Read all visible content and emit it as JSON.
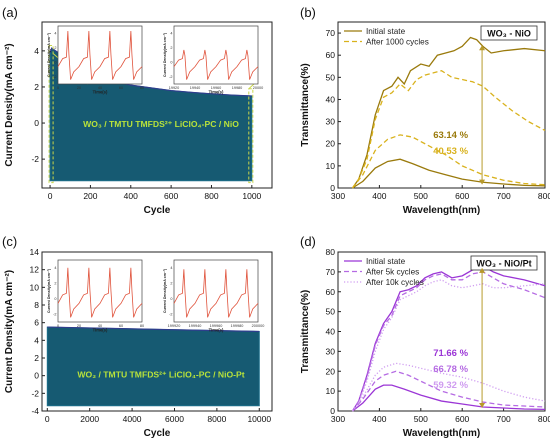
{
  "colors": {
    "band": "#165a72",
    "band_edge": "#1b6f8a",
    "highlight": "#b9e33a",
    "dashed_box": "#c9d64b",
    "inset_line": "#e0533c",
    "nio_solid": "#9a7a0c",
    "nio_dash": "#d9b21d",
    "pt_solid": "#9b36d6",
    "pt_dash": "#b56be3",
    "pt_dot": "#cf9cf0",
    "arrow": "#b89a2a"
  },
  "chart_data": [
    {
      "id": "a",
      "type": "area",
      "panel_label": "(a)",
      "xlabel": "Cycle",
      "ylabel": "Current Density(mA cm⁻²)",
      "xlim": [
        -40,
        1100
      ],
      "ylim": [
        -3.6,
        5.6
      ],
      "xticks": [
        0,
        200,
        400,
        600,
        800,
        1000
      ],
      "yticks": [
        -2,
        0,
        2,
        4
      ],
      "x_extent": [
        0,
        1000
      ],
      "upper_envelope": [
        [
          0,
          3.9
        ],
        [
          8,
          4.15
        ],
        [
          40,
          3.9
        ],
        [
          80,
          3.6
        ],
        [
          120,
          3.3
        ],
        [
          160,
          3.0
        ],
        [
          200,
          2.75
        ],
        [
          300,
          2.35
        ],
        [
          400,
          2.1
        ],
        [
          500,
          1.95
        ],
        [
          600,
          1.8
        ],
        [
          700,
          1.7
        ],
        [
          800,
          1.62
        ],
        [
          900,
          1.55
        ],
        [
          1000,
          1.5
        ]
      ],
      "lower_envelope": [
        [
          0,
          -3.2
        ],
        [
          1000,
          -3.2
        ]
      ],
      "annotation": "WO₃ / TMTU TMFDS²⁺ LiClO₄-PC / NiO",
      "insets": [
        {
          "ylabel": "Current Density(mA cm⁻²)",
          "xlabel": "Time(s)",
          "xticks": [
            "0",
            "20",
            "40",
            "60",
            "80"
          ],
          "yticks": [
            "-2",
            "0",
            "2",
            "4"
          ],
          "xlim": [
            0,
            80
          ],
          "ylim": [
            -3,
            5
          ],
          "period": 20,
          "peak": 4.3,
          "plateau": 0.5,
          "trough": -2.4
        },
        {
          "ylabel": "Current Density(mA cm⁻²)",
          "xlabel": "Time(s)",
          "xticks": [
            "19920",
            "19940",
            "19960",
            "19980",
            "20000"
          ],
          "yticks": [
            "-2",
            "0",
            "2",
            "4"
          ],
          "xlim": [
            19920,
            20000
          ],
          "ylim": [
            -3,
            5
          ],
          "period": 20,
          "peak": 1.7,
          "plateau": 0.3,
          "trough": -2.4
        }
      ]
    },
    {
      "id": "b",
      "type": "line",
      "panel_label": "(b)",
      "title": "WO₃ - NiO",
      "xlabel": "Wavelength(nm)",
      "ylabel": "Transmittance(%)",
      "xlim": [
        300,
        800
      ],
      "ylim": [
        0,
        75
      ],
      "xticks": [
        300,
        400,
        500,
        600,
        700,
        800
      ],
      "yticks": [
        0,
        10,
        20,
        30,
        40,
        50,
        60,
        70
      ],
      "legend_position": "top-left",
      "series": [
        {
          "name": "Initial state",
          "style": "solid",
          "color_key": "nio_solid",
          "points": [
            [
              335,
              0
            ],
            [
              350,
              4
            ],
            [
              370,
              15
            ],
            [
              390,
              33
            ],
            [
              410,
              44
            ],
            [
              430,
              46
            ],
            [
              445,
              50
            ],
            [
              460,
              47
            ],
            [
              475,
              53
            ],
            [
              500,
              56
            ],
            [
              520,
              55
            ],
            [
              540,
              60
            ],
            [
              560,
              61
            ],
            [
              580,
              62
            ],
            [
              600,
              64
            ],
            [
              620,
              68
            ],
            [
              635,
              67
            ],
            [
              650,
              64
            ],
            [
              670,
              61
            ],
            [
              700,
              62
            ],
            [
              750,
              63
            ],
            [
              800,
              62
            ]
          ]
        },
        {
          "name": "",
          "style": "solid",
          "color_key": "nio_solid",
          "points": [
            [
              335,
              0
            ],
            [
              360,
              3
            ],
            [
              390,
              9
            ],
            [
              420,
              12
            ],
            [
              450,
              13
            ],
            [
              480,
              11
            ],
            [
              520,
              8
            ],
            [
              560,
              6
            ],
            [
              600,
              4
            ],
            [
              650,
              2.6
            ],
            [
              700,
              1.8
            ],
            [
              750,
              1.2
            ],
            [
              800,
              1
            ]
          ]
        },
        {
          "name": "After 1000 cycles",
          "style": "dashed",
          "color_key": "nio_dash",
          "points": [
            [
              335,
              0
            ],
            [
              350,
              4
            ],
            [
              370,
              13
            ],
            [
              390,
              31
            ],
            [
              410,
              41
            ],
            [
              430,
              43
            ],
            [
              450,
              47
            ],
            [
              470,
              44
            ],
            [
              490,
              49
            ],
            [
              510,
              51
            ],
            [
              530,
              52
            ],
            [
              550,
              53
            ],
            [
              575,
              50
            ],
            [
              600,
              49
            ],
            [
              625,
              48
            ],
            [
              650,
              46
            ],
            [
              680,
              41
            ],
            [
              720,
              35
            ],
            [
              760,
              30
            ],
            [
              800,
              26
            ]
          ]
        },
        {
          "name": "",
          "style": "dashed",
          "color_key": "nio_dash",
          "points": [
            [
              335,
              0
            ],
            [
              360,
              6
            ],
            [
              390,
              17
            ],
            [
              420,
              22
            ],
            [
              450,
              24
            ],
            [
              480,
              23
            ],
            [
              520,
              19
            ],
            [
              560,
              15
            ],
            [
              600,
              10
            ],
            [
              650,
              6
            ],
            [
              700,
              3.5
            ],
            [
              750,
              2
            ],
            [
              800,
              1.5
            ]
          ]
        }
      ],
      "values": [
        {
          "text": "63.14 %",
          "color_key": "nio_solid"
        },
        {
          "text": "40.53 %",
          "color_key": "nio_dash"
        }
      ],
      "arrow": {
        "x": 648,
        "y1": 64.5,
        "y2": 1.5
      }
    },
    {
      "id": "c",
      "type": "area",
      "panel_label": "(c)",
      "xlabel": "Cycle",
      "ylabel": "Current Density(mA cm⁻²)",
      "xlim": [
        -250,
        10600
      ],
      "ylim": [
        -4,
        14
      ],
      "xticks": [
        0,
        2000,
        4000,
        6000,
        8000,
        10000
      ],
      "yticks": [
        -4,
        -2,
        0,
        2,
        4,
        6,
        8,
        10,
        12,
        14
      ],
      "x_extent": [
        0,
        10000
      ],
      "upper_envelope": [
        [
          0,
          5.5
        ],
        [
          2000,
          5.4
        ],
        [
          4000,
          5.3
        ],
        [
          6000,
          5.2
        ],
        [
          8000,
          5.1
        ],
        [
          10000,
          5.0
        ]
      ],
      "lower_envelope": [
        [
          0,
          -3.4
        ],
        [
          10000,
          -3.4
        ]
      ],
      "annotation": "WO₃ / TMTU TMFDS²⁺ LiClO₄-PC / NiO-Pt",
      "insets": [
        {
          "ylabel": "Current Density(mA cm⁻²)",
          "xlabel": "Time(s)",
          "xticks": [
            "0",
            "20",
            "40",
            "60",
            "80"
          ],
          "yticks": [
            "-2",
            "0",
            "2",
            "4"
          ],
          "xlim": [
            0,
            80
          ],
          "ylim": [
            -3,
            5
          ],
          "period": 20,
          "peak": 4.0,
          "plateau": 0.5,
          "trough": -2.4
        },
        {
          "ylabel": "Current Density(mA cm⁻²)",
          "xlabel": "Time(s)",
          "xticks": [
            "199920",
            "199940",
            "199960",
            "199980",
            "200000"
          ],
          "yticks": [
            "-2",
            "0",
            "2",
            "4"
          ],
          "xlim": [
            199920,
            200000
          ],
          "ylim": [
            -3,
            5
          ],
          "period": 20,
          "peak": 3.8,
          "plateau": 0.5,
          "trough": -2.4
        }
      ]
    },
    {
      "id": "d",
      "type": "line",
      "panel_label": "(d)",
      "title": "WO₃ - NiO/Pt",
      "xlabel": "Wavelength(nm)",
      "ylabel": "Transmittance(%)",
      "xlim": [
        300,
        800
      ],
      "ylim": [
        0,
        80
      ],
      "xticks": [
        300,
        400,
        500,
        600,
        700,
        800
      ],
      "yticks": [
        0,
        10,
        20,
        30,
        40,
        50,
        60,
        70,
        80
      ],
      "legend_position": "top-left",
      "series": [
        {
          "name": "Initial state",
          "style": "solid",
          "color_key": "pt_solid",
          "points": [
            [
              335,
              0
            ],
            [
              350,
              5
            ],
            [
              370,
              18
            ],
            [
              390,
              34
            ],
            [
              410,
              44
            ],
            [
              430,
              50
            ],
            [
              450,
              60
            ],
            [
              470,
              61
            ],
            [
              490,
              63
            ],
            [
              510,
              67
            ],
            [
              530,
              69
            ],
            [
              550,
              70
            ],
            [
              575,
              67
            ],
            [
              600,
              68
            ],
            [
              625,
              71
            ],
            [
              650,
              73
            ],
            [
              675,
              70
            ],
            [
              700,
              68
            ],
            [
              750,
              66
            ],
            [
              800,
              63
            ]
          ]
        },
        {
          "name": "",
          "style": "solid",
          "color_key": "pt_solid",
          "points": [
            [
              335,
              0
            ],
            [
              360,
              4
            ],
            [
              390,
              11
            ],
            [
              410,
              13
            ],
            [
              430,
              13
            ],
            [
              460,
              11
            ],
            [
              500,
              8
            ],
            [
              550,
              5
            ],
            [
              600,
              3.5
            ],
            [
              650,
              2
            ],
            [
              700,
              1.5
            ],
            [
              750,
              1
            ],
            [
              800,
              0.8
            ]
          ]
        },
        {
          "name": "After 5k cycles",
          "style": "dashed",
          "color_key": "pt_dash",
          "points": [
            [
              335,
              0
            ],
            [
              350,
              5
            ],
            [
              370,
              17
            ],
            [
              390,
              33
            ],
            [
              410,
              43
            ],
            [
              430,
              48
            ],
            [
              450,
              58
            ],
            [
              470,
              60
            ],
            [
              490,
              62
            ],
            [
              510,
              66
            ],
            [
              530,
              68
            ],
            [
              550,
              69
            ],
            [
              575,
              66
            ],
            [
              600,
              66
            ],
            [
              625,
              69
            ],
            [
              650,
              70
            ],
            [
              675,
              67
            ],
            [
              700,
              64
            ],
            [
              750,
              61
            ],
            [
              800,
              57
            ]
          ]
        },
        {
          "name": "",
          "style": "dashed",
          "color_key": "pt_dash",
          "points": [
            [
              335,
              0
            ],
            [
              360,
              6
            ],
            [
              390,
              15
            ],
            [
              410,
              18
            ],
            [
              440,
              20
            ],
            [
              470,
              18
            ],
            [
              510,
              14
            ],
            [
              550,
              10
            ],
            [
              600,
              7
            ],
            [
              650,
              4.5
            ],
            [
              700,
              3
            ],
            [
              750,
              2.5
            ],
            [
              800,
              2
            ]
          ]
        },
        {
          "name": "After 10k cycles",
          "style": "dotted",
          "color_key": "pt_dot",
          "points": [
            [
              335,
              0
            ],
            [
              350,
              4
            ],
            [
              370,
              15
            ],
            [
              390,
              30
            ],
            [
              410,
              41
            ],
            [
              430,
              47
            ],
            [
              450,
              56
            ],
            [
              470,
              58
            ],
            [
              490,
              60
            ],
            [
              510,
              63
            ],
            [
              530,
              65
            ],
            [
              550,
              66
            ],
            [
              575,
              63
            ],
            [
              600,
              62
            ],
            [
              625,
              63
            ],
            [
              650,
              64
            ],
            [
              675,
              62
            ],
            [
              700,
              62
            ],
            [
              750,
              63
            ],
            [
              800,
              64
            ]
          ]
        },
        {
          "name": "",
          "style": "dotted",
          "color_key": "pt_dot",
          "points": [
            [
              335,
              0
            ],
            [
              360,
              7
            ],
            [
              390,
              18
            ],
            [
              410,
              22
            ],
            [
              440,
              24
            ],
            [
              470,
              23
            ],
            [
              510,
              21
            ],
            [
              550,
              19
            ],
            [
              600,
              17
            ],
            [
              650,
              14
            ],
            [
              700,
              10
            ],
            [
              750,
              7
            ],
            [
              800,
              5
            ]
          ]
        }
      ],
      "values": [
        {
          "text": "71.66 %",
          "color_key": "pt_solid"
        },
        {
          "text": "66.78 %",
          "color_key": "pt_dash"
        },
        {
          "text": "59.32 %",
          "color_key": "pt_dot"
        }
      ],
      "arrow": {
        "x": 648,
        "y1": 72,
        "y2": 1.5
      }
    }
  ]
}
